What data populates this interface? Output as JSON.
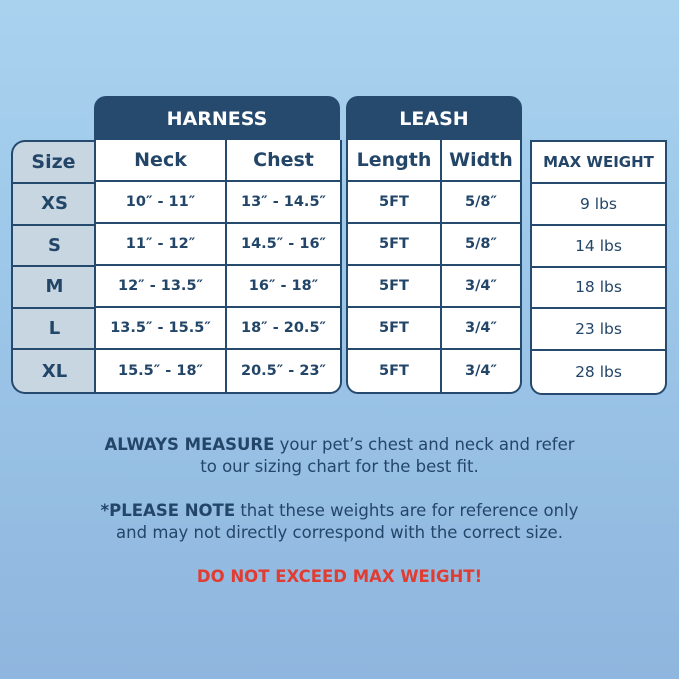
{
  "groups": {
    "harness": "HARNESS",
    "leash": "LEASH"
  },
  "headers": {
    "size": "Size",
    "neck": "Neck",
    "chest": "Chest",
    "length": "Length",
    "width": "Width",
    "max_weight": "MAX WEIGHT"
  },
  "rows": [
    {
      "size": "XS",
      "neck": "10″ - 11″",
      "chest": "13″ - 14.5″",
      "length": "5FT",
      "width": "5/8″",
      "max_weight": "9 lbs"
    },
    {
      "size": "S",
      "neck": "11″ - 12″",
      "chest": "14.5″ - 16″",
      "length": "5FT",
      "width": "5/8″",
      "max_weight": "14 lbs"
    },
    {
      "size": "M",
      "neck": "12″ - 13.5″",
      "chest": "16″ - 18″",
      "length": "5FT",
      "width": "3/4″",
      "max_weight": "18 lbs"
    },
    {
      "size": "L",
      "neck": "13.5″ - 15.5″",
      "chest": "18″ - 20.5″",
      "length": "5FT",
      "width": "3/4″",
      "max_weight": "23 lbs"
    },
    {
      "size": "XL",
      "neck": "15.5″ - 18″",
      "chest": "20.5″ - 23″",
      "length": "5FT",
      "width": "3/4″",
      "max_weight": "28 lbs"
    }
  ],
  "notes": {
    "measure_bold": "ALWAYS MEASURE",
    "measure_rest": " your pet’s chest and neck and refer",
    "measure_line2": "to our sizing chart for the best fit.",
    "note_bold": "*PLEASE NOTE",
    "note_rest": " that these weights are for reference only",
    "note_line2": "and may not directly correspond with the correct size.",
    "warning": "DO NOT EXCEED MAX WEIGHT!"
  },
  "colors": {
    "navy": "#264a6e",
    "warning": "#e03c31",
    "size_column": "#c8d6e2"
  }
}
